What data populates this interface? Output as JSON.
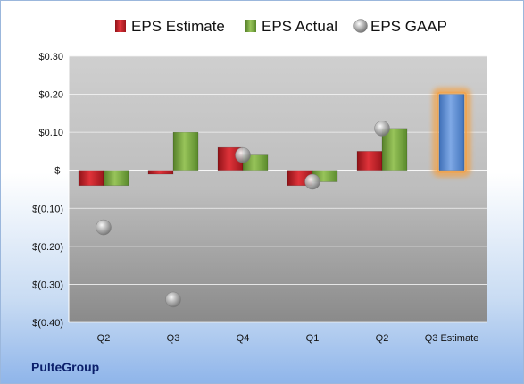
{
  "company": "PulteGroup",
  "chart_data": {
    "type": "bar",
    "categories": [
      "Q2",
      "Q3",
      "Q4",
      "Q1",
      "Q2",
      "Q3 Estimate"
    ],
    "series": [
      {
        "name": "EPS Estimate",
        "kind": "bar",
        "color": "#c0262d",
        "values": [
          -0.04,
          -0.01,
          0.06,
          -0.04,
          0.05,
          null
        ]
      },
      {
        "name": "EPS Actual",
        "kind": "bar",
        "color": "#7aa83e",
        "values": [
          -0.04,
          0.1,
          0.04,
          -0.03,
          0.11,
          0.2
        ]
      },
      {
        "name": "EPS GAAP",
        "kind": "marker",
        "color": "#a0a0a0",
        "values": [
          -0.15,
          -0.34,
          0.04,
          -0.03,
          0.11,
          null
        ]
      }
    ],
    "highlight": {
      "category_index": 5,
      "value": 0.2,
      "bar_color": "#5b8fd6",
      "glow_color": "#f5a040"
    },
    "yticks": [
      0.3,
      0.2,
      0.1,
      0,
      -0.1,
      -0.2,
      -0.3,
      -0.4
    ],
    "ytick_labels": [
      "$0.30",
      "$0.20",
      "$0.10",
      "$-",
      "$(0.10)",
      "$(0.20)",
      "$(0.30)",
      "$(0.40)"
    ],
    "ylim": [
      -0.4,
      0.3
    ],
    "legend_position": "top",
    "grid": true
  }
}
